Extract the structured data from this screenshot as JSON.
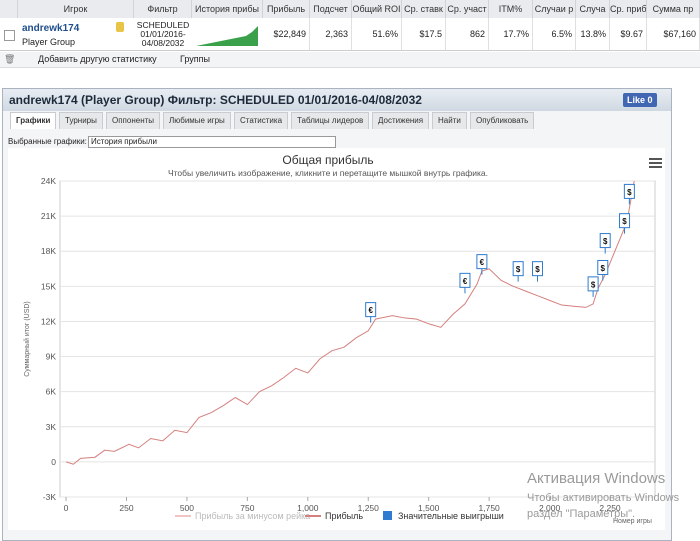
{
  "table": {
    "headers": [
      "Игрок",
      "Фильтр",
      "История прибы",
      "Прибыль",
      "Подсчет",
      "Общий ROI",
      "Ср. ставк",
      "Ср. участ",
      "ITM%",
      "Случаи р",
      "Случа",
      "Ср. прибы",
      "Сумма пр"
    ],
    "row": {
      "player": "andrewk174",
      "group": "Player Group",
      "filter_lines": [
        "SCHEDULED",
        "01/01/2016-",
        "04/08/2032"
      ],
      "values": [
        "$22,849",
        "2,363",
        "51.6%",
        "$17.5",
        "862",
        "17.7%",
        "6.5%",
        "13.8%",
        "$9.67",
        "$67,160"
      ]
    }
  },
  "toolbar": {
    "add": "Добавить другую статистику",
    "groups": "Группы"
  },
  "panel": {
    "title": "andrewk174 (Player Group) Фильтр: SCHEDULED 01/01/2016-04/08/2032",
    "like": "Like",
    "like_count": "0",
    "tabs": [
      "Графики",
      "Турниры",
      "Оппоненты",
      "Любимые игры",
      "Статистика",
      "Таблицы лидеров",
      "Достижения",
      "Найти",
      "Опубликовать"
    ],
    "select_label": "Выбранные графики:",
    "select_value": "История прибыли"
  },
  "chart": {
    "type": "line",
    "title": "Общая прибыль",
    "subtitle": "Чтобы увеличить изображение, кликните и перетащите мышкой внутрь графика.",
    "y_axis_title": "Суммарный итог (USD)",
    "x_axis_title": "Номер игры",
    "xlim": [
      -25,
      2436
    ],
    "ylim": [
      -3000,
      24000
    ],
    "xticks": [
      0,
      250,
      500,
      750,
      {
        "value": 1000,
        "label": "1,000"
      },
      {
        "value": 1250,
        "label": "1,250"
      },
      {
        "value": 1500,
        "label": "1,500"
      },
      {
        "value": 1750,
        "label": "1,750"
      },
      {
        "value": 2000,
        "label": "2,000"
      },
      {
        "value": 2250,
        "label": "2,250"
      }
    ],
    "yticks": [
      {
        "value": -3000,
        "label": "-3K"
      },
      0,
      {
        "value": 3000,
        "label": "3K"
      },
      {
        "value": 6000,
        "label": "6K"
      },
      {
        "value": 9000,
        "label": "9K"
      },
      {
        "value": 12000,
        "label": "12K"
      },
      {
        "value": 15000,
        "label": "15K"
      },
      {
        "value": 18000,
        "label": "18K"
      },
      {
        "value": 21000,
        "label": "21K"
      },
      {
        "value": 24000,
        "label": "24K"
      }
    ],
    "grid": true,
    "x": [
      0,
      30,
      60,
      120,
      160,
      200,
      260,
      300,
      350,
      400,
      450,
      500,
      550,
      600,
      650,
      700,
      750,
      800,
      850,
      900,
      950,
      1000,
      1050,
      1100,
      1150,
      1200,
      1250,
      1280,
      1350,
      1400,
      1450,
      1500,
      1550,
      1600,
      1650,
      1700,
      1720,
      1750,
      1800,
      1850,
      1900,
      1950,
      2000,
      2050,
      2100,
      2150,
      2180,
      2200,
      2230,
      2260,
      2300,
      2320,
      2350
    ],
    "series": [
      {
        "name": "Прибыль за минусом рейка",
        "color": "#f0c4c4",
        "hidden": true
      },
      {
        "name": "Прибыль",
        "color": "#d4807e",
        "values": [
          0,
          -200,
          300,
          400,
          1000,
          900,
          1500,
          1200,
          2000,
          1800,
          2700,
          2500,
          3800,
          4200,
          4800,
          5500,
          4900,
          6000,
          6500,
          7200,
          8000,
          7600,
          8800,
          9500,
          9800,
          10600,
          11200,
          12200,
          12500,
          12300,
          12200,
          11800,
          11500,
          12600,
          13500,
          15200,
          16300,
          16500,
          15500,
          15000,
          14600,
          14200,
          13800,
          13400,
          13300,
          13200,
          13500,
          14800,
          16000,
          17500,
          19500,
          20500,
          24000
        ]
      }
    ],
    "big_wins": {
      "name": "Значительные выигрыши",
      "color": "#2e7bcf",
      "x": [
        1260,
        1650,
        1720,
        1870,
        1950,
        2180,
        2220,
        2230,
        2310,
        2330
      ],
      "values": [
        11900,
        14400,
        16000,
        15400,
        15400,
        14100,
        15500,
        17800,
        19500,
        22000
      ],
      "labels": [
        "€",
        "€",
        "€",
        "$",
        "$",
        "$",
        "$",
        "$",
        "$",
        "$"
      ]
    }
  },
  "watermark": {
    "title": "Активация Windows",
    "lines": [
      "Чтобы активировать Windows",
      "раздел \"Параметры\"."
    ]
  }
}
